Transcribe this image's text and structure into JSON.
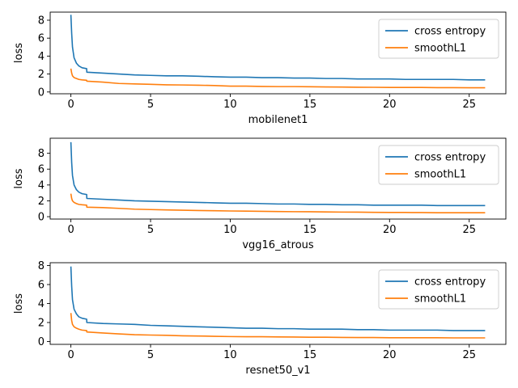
{
  "colors": {
    "cross_entropy": "#1f77b4",
    "smoothL1": "#ff7f0e",
    "axes": "#000000"
  },
  "chart_data": [
    {
      "type": "line",
      "xlabel": "mobilenet1",
      "ylabel": "loss",
      "xlim": [
        -1.3,
        27.3
      ],
      "ylim": [
        -0.2,
        8.9
      ],
      "xticks": [
        0,
        5,
        10,
        15,
        20,
        25
      ],
      "yticks": [
        0,
        2,
        4,
        6,
        8
      ],
      "legend": "top-right",
      "series": [
        {
          "name": "cross entropy",
          "color": "#1f77b4",
          "x": [
            0,
            0.05,
            0.1,
            0.2,
            0.35,
            0.5,
            0.7,
            0.99,
            1.0,
            2,
            3,
            4,
            5,
            6,
            7,
            8,
            9,
            10,
            11,
            12,
            13,
            14,
            15,
            16,
            17,
            18,
            19,
            20,
            21,
            22,
            23,
            24,
            25,
            26
          ],
          "y": [
            8.6,
            6.5,
            5.0,
            3.8,
            3.2,
            2.9,
            2.7,
            2.6,
            2.2,
            2.1,
            2.0,
            1.9,
            1.85,
            1.8,
            1.8,
            1.75,
            1.7,
            1.65,
            1.65,
            1.6,
            1.6,
            1.55,
            1.55,
            1.5,
            1.5,
            1.45,
            1.45,
            1.45,
            1.4,
            1.4,
            1.4,
            1.4,
            1.35,
            1.35
          ]
        },
        {
          "name": "smoothL1",
          "color": "#ff7f0e",
          "x": [
            0,
            0.05,
            0.1,
            0.2,
            0.35,
            0.5,
            0.7,
            0.99,
            1.0,
            2,
            3,
            4,
            5,
            6,
            7,
            8,
            9,
            10,
            11,
            12,
            13,
            14,
            15,
            16,
            17,
            18,
            19,
            20,
            21,
            22,
            23,
            24,
            25,
            26
          ],
          "y": [
            2.6,
            2.1,
            1.8,
            1.6,
            1.5,
            1.4,
            1.35,
            1.3,
            1.2,
            1.1,
            0.95,
            0.9,
            0.85,
            0.8,
            0.78,
            0.75,
            0.72,
            0.65,
            0.65,
            0.62,
            0.6,
            0.6,
            0.58,
            0.56,
            0.55,
            0.53,
            0.52,
            0.5,
            0.5,
            0.5,
            0.48,
            0.48,
            0.47,
            0.47
          ]
        }
      ]
    },
    {
      "type": "line",
      "xlabel": "vgg16_atrous",
      "ylabel": "loss",
      "xlim": [
        -1.3,
        27.3
      ],
      "ylim": [
        -0.3,
        9.9
      ],
      "xticks": [
        0,
        5,
        10,
        15,
        20,
        25
      ],
      "yticks": [
        0,
        2,
        4,
        6,
        8
      ],
      "legend": "top-right",
      "series": [
        {
          "name": "cross entropy",
          "color": "#1f77b4",
          "x": [
            0,
            0.05,
            0.1,
            0.2,
            0.35,
            0.5,
            0.7,
            0.99,
            1.0,
            2,
            3,
            4,
            5,
            6,
            7,
            8,
            9,
            10,
            11,
            12,
            13,
            14,
            15,
            16,
            17,
            18,
            19,
            20,
            21,
            22,
            23,
            24,
            25,
            26
          ],
          "y": [
            9.4,
            6.8,
            5.2,
            4.0,
            3.4,
            3.1,
            2.9,
            2.8,
            2.3,
            2.2,
            2.1,
            2.0,
            1.95,
            1.9,
            1.85,
            1.8,
            1.75,
            1.7,
            1.7,
            1.65,
            1.6,
            1.6,
            1.55,
            1.55,
            1.5,
            1.5,
            1.45,
            1.45,
            1.45,
            1.45,
            1.4,
            1.4,
            1.4,
            1.4
          ]
        },
        {
          "name": "smoothL1",
          "color": "#ff7f0e",
          "x": [
            0,
            0.05,
            0.1,
            0.2,
            0.35,
            0.5,
            0.7,
            0.99,
            1.0,
            2,
            3,
            4,
            5,
            6,
            7,
            8,
            9,
            10,
            11,
            12,
            13,
            14,
            15,
            16,
            17,
            18,
            19,
            20,
            21,
            22,
            23,
            24,
            25,
            26
          ],
          "y": [
            2.9,
            2.3,
            2.0,
            1.8,
            1.65,
            1.55,
            1.5,
            1.45,
            1.2,
            1.15,
            1.05,
            0.95,
            0.9,
            0.85,
            0.82,
            0.78,
            0.75,
            0.72,
            0.7,
            0.68,
            0.65,
            0.63,
            0.62,
            0.6,
            0.58,
            0.57,
            0.55,
            0.53,
            0.53,
            0.52,
            0.5,
            0.5,
            0.5,
            0.5
          ]
        }
      ]
    },
    {
      "type": "line",
      "xlabel": "resnet50_v1",
      "ylabel": "loss",
      "xlim": [
        -1.3,
        27.3
      ],
      "ylim": [
        -0.3,
        8.3
      ],
      "xticks": [
        0,
        5,
        10,
        15,
        20,
        25
      ],
      "yticks": [
        0,
        2,
        4,
        6,
        8
      ],
      "legend": "top-right",
      "series": [
        {
          "name": "cross entropy",
          "color": "#1f77b4",
          "x": [
            0,
            0.05,
            0.1,
            0.2,
            0.35,
            0.5,
            0.7,
            0.99,
            1.0,
            2,
            3,
            4,
            5,
            6,
            7,
            8,
            9,
            10,
            11,
            12,
            13,
            14,
            15,
            16,
            17,
            18,
            19,
            20,
            21,
            22,
            23,
            24,
            25,
            26
          ],
          "y": [
            7.9,
            5.8,
            4.4,
            3.4,
            2.9,
            2.6,
            2.45,
            2.35,
            2.0,
            1.9,
            1.85,
            1.8,
            1.7,
            1.65,
            1.6,
            1.55,
            1.5,
            1.45,
            1.4,
            1.4,
            1.35,
            1.35,
            1.3,
            1.3,
            1.3,
            1.25,
            1.25,
            1.2,
            1.2,
            1.2,
            1.2,
            1.15,
            1.15,
            1.15
          ]
        },
        {
          "name": "smoothL1",
          "color": "#ff7f0e",
          "x": [
            0,
            0.05,
            0.1,
            0.2,
            0.35,
            0.5,
            0.7,
            0.99,
            1.0,
            2,
            3,
            4,
            5,
            6,
            7,
            8,
            9,
            10,
            11,
            12,
            13,
            14,
            15,
            16,
            17,
            18,
            19,
            20,
            21,
            22,
            23,
            24,
            25,
            26
          ],
          "y": [
            3.0,
            2.2,
            1.8,
            1.55,
            1.4,
            1.3,
            1.2,
            1.15,
            1.0,
            0.9,
            0.8,
            0.72,
            0.68,
            0.65,
            0.6,
            0.58,
            0.55,
            0.52,
            0.5,
            0.5,
            0.48,
            0.47,
            0.45,
            0.45,
            0.43,
            0.42,
            0.42,
            0.4,
            0.4,
            0.4,
            0.4,
            0.38,
            0.38,
            0.38
          ]
        }
      ]
    }
  ]
}
